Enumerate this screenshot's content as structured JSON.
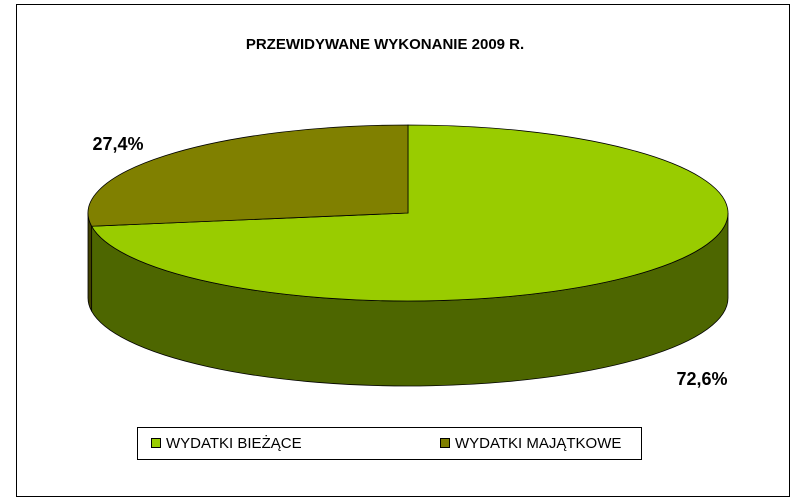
{
  "chart_data": {
    "type": "pie",
    "title": "PRZEWIDYWANE WYKONANIE 2009 R.",
    "categories": [
      "WYDATKI BIEŻĄCE",
      "WYDATKI MAJĄTKOWE"
    ],
    "values": [
      72.6,
      27.4
    ],
    "value_labels": [
      "72,6%",
      "27,4%"
    ],
    "colors": [
      "#99cc00",
      "#808000"
    ],
    "legend": "bottom"
  }
}
